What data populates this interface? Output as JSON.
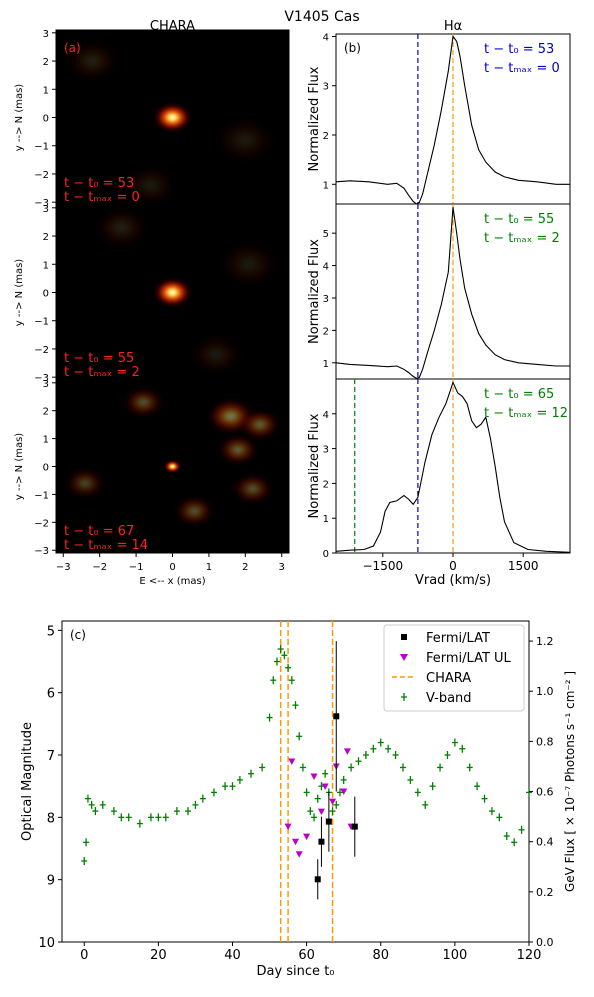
{
  "figure": {
    "title": "V1405 Cas"
  },
  "chart_data": [
    {
      "type": "heatmap",
      "title": "CHARA",
      "panel_label": "(a)",
      "xlabel": "E <-- x (mas)",
      "ylabel": "y --> N (mas)",
      "xlim": [
        -3.2,
        3.2
      ],
      "ylim": [
        -3.1,
        3.1
      ],
      "xticks": [
        -3,
        -2,
        -1,
        0,
        1,
        2,
        3
      ],
      "yticks": [
        3,
        2,
        1,
        0,
        -1,
        -2,
        -3
      ],
      "colormap": "hot",
      "images": [
        {
          "epoch_lines": [
            "t − t₀ = 53",
            "t − tₘₐₓ = 0"
          ],
          "blobs": [
            {
              "x": 0.0,
              "y": 0.0,
              "size": 0.55,
              "intensity": 1.0
            },
            {
              "x": -2.2,
              "y": 2.0,
              "size": 0.8,
              "intensity": 0.12
            },
            {
              "x": 2.0,
              "y": -0.8,
              "size": 0.9,
              "intensity": 0.1
            },
            {
              "x": -0.6,
              "y": -2.4,
              "size": 0.8,
              "intensity": 0.1
            }
          ]
        },
        {
          "epoch_lines": [
            "t − t₀ = 55",
            "t − tₘₐₓ = 2"
          ],
          "blobs": [
            {
              "x": 0.0,
              "y": 0.0,
              "size": 0.55,
              "intensity": 1.0
            },
            {
              "x": -1.4,
              "y": 2.3,
              "size": 0.8,
              "intensity": 0.12
            },
            {
              "x": 2.1,
              "y": 1.0,
              "size": 0.9,
              "intensity": 0.1
            },
            {
              "x": 1.2,
              "y": -2.2,
              "size": 0.8,
              "intensity": 0.1
            }
          ]
        },
        {
          "epoch_lines": [
            "t − t₀ = 67",
            "t − tₘₐₓ = 14"
          ],
          "blobs": [
            {
              "x": 0.0,
              "y": 0.0,
              "size": 0.25,
              "intensity": 1.0
            },
            {
              "x": 1.6,
              "y": 1.8,
              "size": 0.7,
              "intensity": 0.45
            },
            {
              "x": 2.4,
              "y": 1.5,
              "size": 0.6,
              "intensity": 0.35
            },
            {
              "x": -0.8,
              "y": 2.3,
              "size": 0.6,
              "intensity": 0.3
            },
            {
              "x": 1.8,
              "y": 0.6,
              "size": 0.6,
              "intensity": 0.35
            },
            {
              "x": 2.2,
              "y": -0.8,
              "size": 0.6,
              "intensity": 0.3
            },
            {
              "x": 0.6,
              "y": -1.6,
              "size": 0.6,
              "intensity": 0.3
            },
            {
              "x": -2.4,
              "y": -0.6,
              "size": 0.6,
              "intensity": 0.25
            }
          ]
        }
      ]
    },
    {
      "type": "line",
      "title": "Hα",
      "panel_label": "(b)",
      "xlabel": "Vrad (km/s)",
      "ylabel": "Normalized Flux",
      "xlim": [
        -2500,
        2500
      ],
      "xticks": [
        -1500,
        0,
        1500
      ],
      "panels": [
        {
          "epoch_lines": [
            "t − t₀ = 53",
            "t − tₘₐₓ = 0"
          ],
          "epoch_color": "#0000cc",
          "ylim": [
            0.6,
            4.05
          ],
          "yticks": [
            1,
            2,
            3,
            4
          ],
          "vlines": [
            {
              "x": -750,
              "color": "#0000cc"
            },
            {
              "x": 0,
              "color": "#ff9900"
            }
          ],
          "x": [
            -2500,
            -2200,
            -1800,
            -1400,
            -1200,
            -1050,
            -950,
            -850,
            -780,
            -720,
            -650,
            -550,
            -400,
            -250,
            -100,
            0,
            80,
            150,
            250,
            400,
            550,
            700,
            900,
            1100,
            1400,
            1800,
            2200,
            2500
          ],
          "y": [
            1.05,
            1.07,
            1.05,
            1.0,
            1.02,
            0.92,
            0.78,
            0.65,
            0.6,
            0.63,
            0.8,
            1.2,
            1.8,
            2.5,
            3.3,
            4.0,
            3.9,
            3.6,
            3.0,
            2.2,
            1.7,
            1.45,
            1.25,
            1.15,
            1.08,
            1.05,
            1.0,
            1.0
          ]
        },
        {
          "epoch_lines": [
            "t − t₀ = 55",
            "t − tₘₐₓ = 2"
          ],
          "epoch_color": "#008000",
          "ylim": [
            0.5,
            5.9
          ],
          "yticks": [
            1,
            2,
            3,
            4,
            5
          ],
          "vlines": [
            {
              "x": -750,
              "color": "#0000cc"
            },
            {
              "x": 0,
              "color": "#ff9900"
            }
          ],
          "x": [
            -2500,
            -2200,
            -1800,
            -1400,
            -1200,
            -1050,
            -950,
            -850,
            -780,
            -720,
            -650,
            -550,
            -400,
            -250,
            -100,
            0,
            80,
            150,
            250,
            400,
            550,
            700,
            900,
            1100,
            1400,
            1800,
            2200,
            2500
          ],
          "y": [
            1.0,
            0.95,
            0.92,
            0.88,
            0.9,
            0.8,
            0.7,
            0.58,
            0.52,
            0.55,
            0.8,
            1.3,
            2.0,
            2.8,
            3.8,
            5.8,
            5.0,
            4.2,
            3.3,
            2.5,
            1.9,
            1.55,
            1.25,
            1.1,
            1.0,
            0.95,
            0.9,
            0.9
          ]
        },
        {
          "epoch_lines": [
            "t − t₀ = 65",
            "t − tₘₐₓ = 12"
          ],
          "epoch_color": "#008000",
          "ylim": [
            0,
            5.0
          ],
          "yticks": [
            0,
            1,
            2,
            3,
            4
          ],
          "vlines": [
            {
              "x": -2100,
              "color": "#008000"
            },
            {
              "x": -750,
              "color": "#0000cc"
            },
            {
              "x": 0,
              "color": "#ff9900"
            }
          ],
          "x": [
            -2500,
            -2200,
            -1900,
            -1700,
            -1550,
            -1450,
            -1350,
            -1200,
            -1050,
            -950,
            -850,
            -750,
            -600,
            -450,
            -300,
            -150,
            0,
            100,
            200,
            300,
            400,
            500,
            600,
            700,
            800,
            900,
            1000,
            1100,
            1300,
            1600,
            2000,
            2500
          ],
          "y": [
            0.05,
            0.08,
            0.1,
            0.2,
            0.6,
            1.2,
            1.45,
            1.5,
            1.65,
            1.55,
            1.4,
            1.6,
            2.6,
            3.4,
            3.9,
            4.3,
            4.9,
            4.6,
            4.5,
            4.3,
            3.8,
            3.6,
            3.7,
            3.9,
            3.3,
            2.5,
            1.6,
            0.9,
            0.3,
            0.1,
            0.05,
            0.02
          ]
        }
      ]
    },
    {
      "type": "scatter",
      "panel_label": "(c)",
      "xlabel": "Day since t₀",
      "ylabel": "Optical Magnitude",
      "y2label": "GeV Flux [ × 10⁻⁷ Photons s⁻¹ cm⁻² ]",
      "xlim": [
        -6,
        120
      ],
      "ylim": [
        10,
        4.85
      ],
      "y_inverted": true,
      "y2lim": [
        0,
        1.28
      ],
      "xticks": [
        0,
        20,
        40,
        60,
        80,
        100,
        120
      ],
      "yticks": [
        5,
        6,
        7,
        8,
        9,
        10
      ],
      "y2ticks": [
        0.0,
        0.2,
        0.4,
        0.6,
        0.8,
        1.0,
        1.2
      ],
      "legend_position": "top-right",
      "legend": [
        {
          "label": "Fermi/LAT",
          "marker": "square",
          "color": "#000000"
        },
        {
          "label": "Fermi/LAT UL",
          "marker": "triangle-down",
          "color": "#bb00cc"
        },
        {
          "label": "CHARA",
          "marker": "dashed-line",
          "color": "#ff9900"
        },
        {
          "label": "V-band",
          "marker": "plus-errorbar",
          "color": "#008000"
        }
      ],
      "chara_days": [
        53,
        55,
        67
      ],
      "vband": {
        "x": [
          0,
          0.5,
          1,
          2,
          3,
          5,
          8,
          10,
          12,
          15,
          18,
          20,
          22,
          25,
          28,
          30,
          32,
          35,
          38,
          40,
          42,
          45,
          48,
          50,
          51,
          52,
          53,
          54,
          55,
          56,
          57,
          58,
          59,
          60,
          61,
          62,
          63,
          64,
          65,
          66,
          67,
          68,
          69,
          70,
          72,
          74,
          76,
          78,
          80,
          82,
          84,
          86,
          88,
          90,
          92,
          94,
          96,
          98,
          100,
          102,
          104,
          106,
          108,
          110,
          112,
          114,
          116,
          118,
          120
        ],
        "y": [
          8.7,
          8.4,
          7.7,
          7.8,
          7.9,
          7.8,
          7.9,
          8.0,
          8.0,
          8.1,
          8.0,
          8.0,
          8.0,
          7.9,
          7.9,
          7.8,
          7.7,
          7.6,
          7.5,
          7.5,
          7.4,
          7.3,
          7.2,
          6.4,
          5.8,
          5.5,
          5.3,
          5.4,
          5.6,
          5.8,
          6.2,
          6.7,
          7.2,
          7.6,
          7.9,
          8.0,
          7.7,
          7.5,
          7.3,
          7.6,
          7.9,
          7.8,
          7.6,
          7.4,
          7.2,
          7.1,
          7.0,
          6.9,
          6.8,
          6.9,
          7.0,
          7.2,
          7.4,
          7.6,
          7.8,
          7.5,
          7.2,
          7.0,
          6.8,
          6.9,
          7.2,
          7.5,
          7.7,
          7.9,
          8.0,
          8.3,
          8.4,
          8.2,
          7.6
        ]
      },
      "fermi_lat": {
        "x": [
          63,
          64,
          66,
          68,
          73
        ],
        "flux": [
          0.25,
          0.4,
          0.48,
          0.9,
          0.46
        ],
        "flux_err": [
          0.08,
          0.1,
          0.12,
          0.3,
          0.12
        ]
      },
      "fermi_lat_ul": {
        "x": [
          55,
          56,
          57,
          58,
          60,
          62,
          64,
          65,
          66,
          67,
          68,
          70,
          71,
          72
        ],
        "flux": [
          0.46,
          0.72,
          0.4,
          0.35,
          0.42,
          0.66,
          0.52,
          0.62,
          0.48,
          0.56,
          0.7,
          0.6,
          0.76,
          0.46
        ]
      }
    }
  ]
}
